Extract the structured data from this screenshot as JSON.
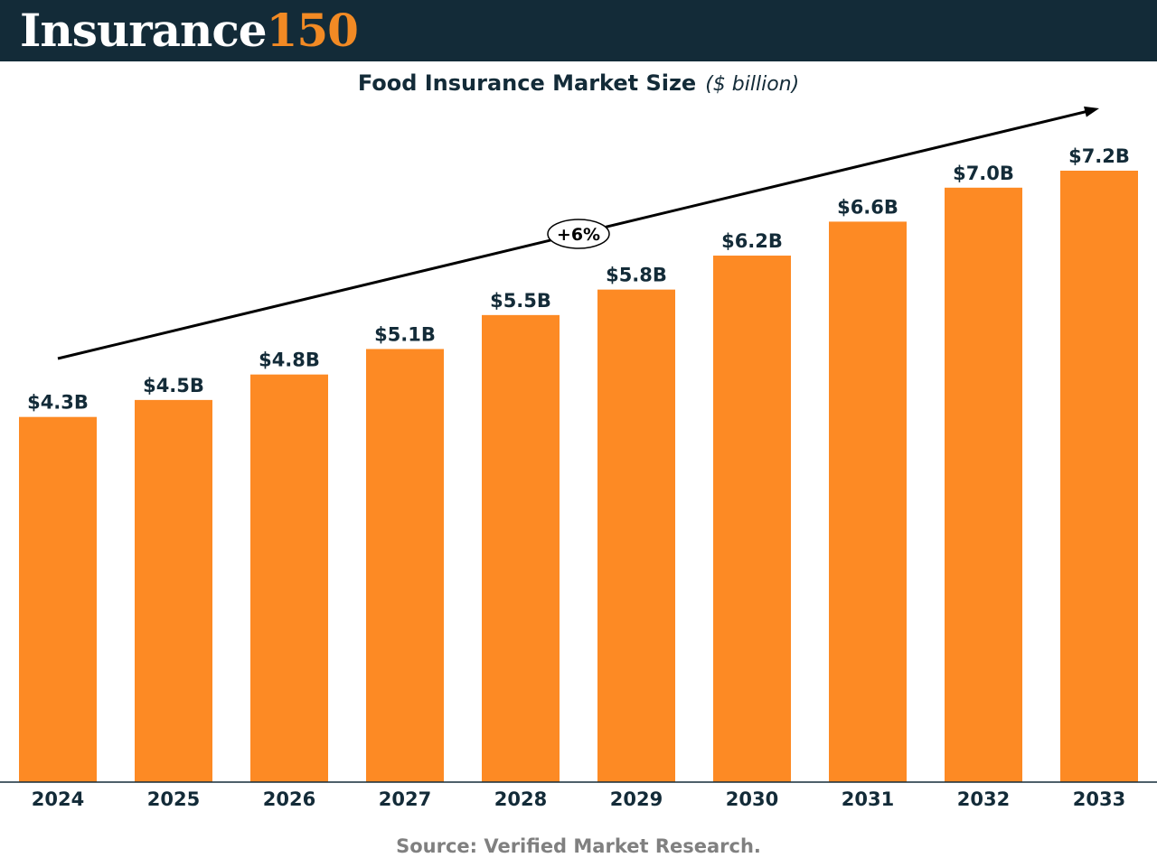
{
  "header": {
    "logo_word": "Insurance",
    "logo_number": "150",
    "logo_colors": {
      "word": "#ffffff",
      "number": "#f28a24",
      "background": "#132b38"
    }
  },
  "chart_data": {
    "type": "bar",
    "title": "Food Insurance Market Size",
    "title_unit": "($ billion)",
    "categories": [
      "2024",
      "2025",
      "2026",
      "2027",
      "2028",
      "2029",
      "2030",
      "2031",
      "2032",
      "2033"
    ],
    "values": [
      4.3,
      4.5,
      4.8,
      5.1,
      5.5,
      5.8,
      6.2,
      6.6,
      7.0,
      7.2
    ],
    "data_labels": [
      "$4.3B",
      "$4.5B",
      "$4.8B",
      "$5.1B",
      "$5.5B",
      "$5.8B",
      "$6.2B",
      "$6.6B",
      "$7.0B",
      "$7.2B"
    ],
    "ylim": [
      0,
      7.2
    ],
    "grid": false,
    "bar_color": "#fd8a24",
    "trend_annotation": "+6%",
    "xlabel": "",
    "ylabel": ""
  },
  "footer": {
    "source": "Source: Verified Market Research."
  }
}
